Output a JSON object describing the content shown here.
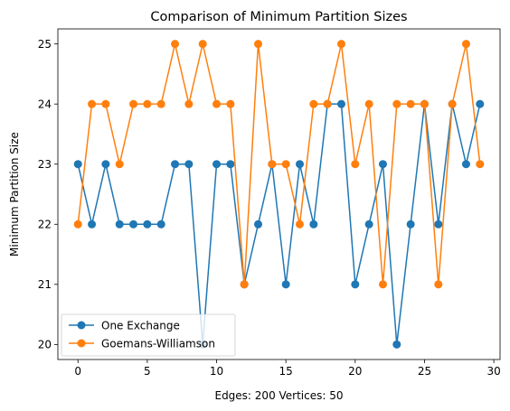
{
  "chart_data": {
    "type": "line",
    "title": "Comparison of Minimum Partition Sizes",
    "xlabel": "Edges: 200 Vertices: 50",
    "ylabel": "Minimum Partition Size",
    "xlim": [
      -1.45,
      30.45
    ],
    "ylim": [
      19.75,
      25.25
    ],
    "xticks": [
      0,
      5,
      10,
      15,
      20,
      25,
      30
    ],
    "yticks": [
      20,
      21,
      22,
      23,
      24,
      25
    ],
    "grid": false,
    "legend_position": "lower-left",
    "x": [
      0,
      1,
      2,
      3,
      4,
      5,
      6,
      7,
      8,
      9,
      10,
      11,
      12,
      13,
      14,
      15,
      16,
      17,
      18,
      19,
      20,
      21,
      22,
      23,
      24,
      25,
      26,
      27,
      28,
      29
    ],
    "series": [
      {
        "name": "One Exchange",
        "color": "#1f77b4",
        "values": [
          23,
          22,
          23,
          22,
          22,
          22,
          22,
          23,
          23,
          20,
          23,
          23,
          21,
          22,
          23,
          21,
          23,
          22,
          24,
          24,
          21,
          22,
          23,
          20,
          22,
          24,
          22,
          24,
          23,
          24
        ]
      },
      {
        "name": "Goemans-Williamson",
        "color": "#ff7f0e",
        "values": [
          22,
          24,
          24,
          23,
          24,
          24,
          24,
          25,
          24,
          25,
          24,
          24,
          21,
          25,
          23,
          23,
          22,
          24,
          24,
          25,
          23,
          24,
          21,
          24,
          24,
          24,
          21,
          24,
          25,
          23
        ]
      }
    ]
  }
}
